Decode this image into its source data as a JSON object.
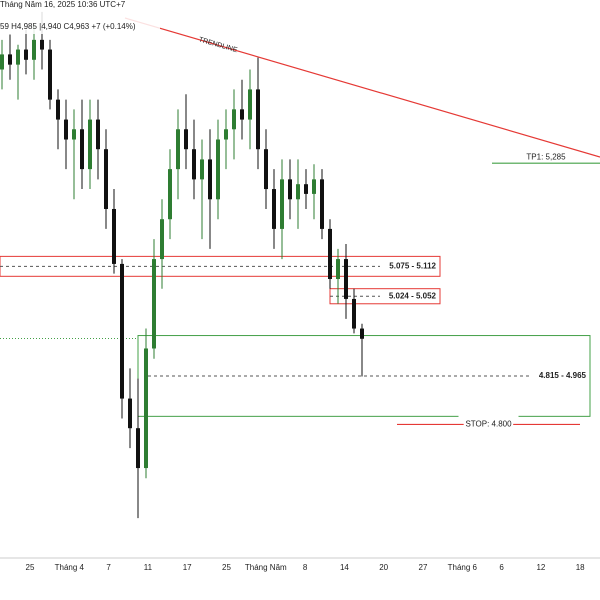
{
  "chart_data": {
    "type": "candlestick",
    "header": [
      "Tháng Năm 16, 2025 10:36 UTC+7",
      "59  H4,985  |4,940  C4,963  +7 (+0.14%)"
    ],
    "x_labels": [
      "25",
      "Tháng 4",
      "7",
      "11",
      "17",
      "25",
      "Tháng Năm",
      "8",
      "14",
      "20",
      "27",
      "Tháng 6",
      "6",
      "12",
      "18"
    ],
    "ylim": [
      4.552,
      5.588
    ],
    "up_color": "#2e7d32",
    "down_color": "#111111",
    "open": [
      5.459,
      5.487,
      5.468,
      5.496,
      5.477,
      5.514,
      5.496,
      5.403,
      5.366,
      5.329,
      5.348,
      5.274,
      5.366,
      5.311,
      5.2,
      5.098,
      4.848,
      4.793,
      4.719,
      4.941,
      5.107,
      5.181,
      5.274,
      5.348,
      5.311,
      5.255,
      5.292,
      5.218,
      5.329,
      5.348,
      5.385,
      5.366,
      5.422,
      5.311,
      5.237,
      5.163,
      5.255,
      5.218,
      5.246,
      5.228,
      5.255,
      5.163,
      5.07,
      5.107,
      5.033,
      4.978
    ],
    "high": [
      5.514,
      5.524,
      5.505,
      5.533,
      5.542,
      5.566,
      5.514,
      5.422,
      5.403,
      5.385,
      5.403,
      5.403,
      5.403,
      5.348,
      5.237,
      5.107,
      4.904,
      4.885,
      4.978,
      5.144,
      5.218,
      5.311,
      5.385,
      5.413,
      5.366,
      5.329,
      5.348,
      5.366,
      5.385,
      5.422,
      5.44,
      5.459,
      5.481,
      5.348,
      5.274,
      5.292,
      5.292,
      5.292,
      5.274,
      5.283,
      5.274,
      5.181,
      5.126,
      5.135,
      5.052,
      4.987
    ],
    "low": [
      5.422,
      5.44,
      5.403,
      5.45,
      5.44,
      5.459,
      5.385,
      5.311,
      5.274,
      5.218,
      5.237,
      5.237,
      5.255,
      5.163,
      5.08,
      4.811,
      4.756,
      4.626,
      4.7,
      4.922,
      5.052,
      5.144,
      5.218,
      5.274,
      5.218,
      5.144,
      5.126,
      5.181,
      5.274,
      5.292,
      5.329,
      5.311,
      5.274,
      5.2,
      5.126,
      5.107,
      5.181,
      5.163,
      5.2,
      5.181,
      5.144,
      5.052,
      5.024,
      4.996,
      4.969,
      4.889
    ],
    "close": [
      5.487,
      5.468,
      5.496,
      5.477,
      5.514,
      5.496,
      5.403,
      5.366,
      5.329,
      5.348,
      5.274,
      5.366,
      5.311,
      5.2,
      5.098,
      4.848,
      4.793,
      4.719,
      4.941,
      5.107,
      5.181,
      5.274,
      5.348,
      5.311,
      5.255,
      5.292,
      5.218,
      5.329,
      5.348,
      5.385,
      5.366,
      5.422,
      5.311,
      5.237,
      5.163,
      5.255,
      5.218,
      5.246,
      5.228,
      5.255,
      5.163,
      5.07,
      5.107,
      5.033,
      4.978,
      4.959
    ],
    "trendline_label": "TRENDLINE",
    "trendline_color": "#e53935",
    "zones": [
      {
        "label": "5.075 - 5.112",
        "low": 5.075,
        "high": 5.112,
        "color": "#e53935"
      },
      {
        "label": "5.024 - 5.052",
        "low": 5.024,
        "high": 5.052,
        "color": "#e53935"
      },
      {
        "label": "4.815 - 4.965",
        "low": 4.815,
        "high": 4.965,
        "color": "#43a047"
      }
    ],
    "levels": [
      {
        "label": "TP1: 5,285",
        "value": 5.285,
        "color": "#43a047"
      },
      {
        "label": "STOP: 4.800",
        "value": 4.8,
        "color": "#e53935"
      }
    ]
  }
}
